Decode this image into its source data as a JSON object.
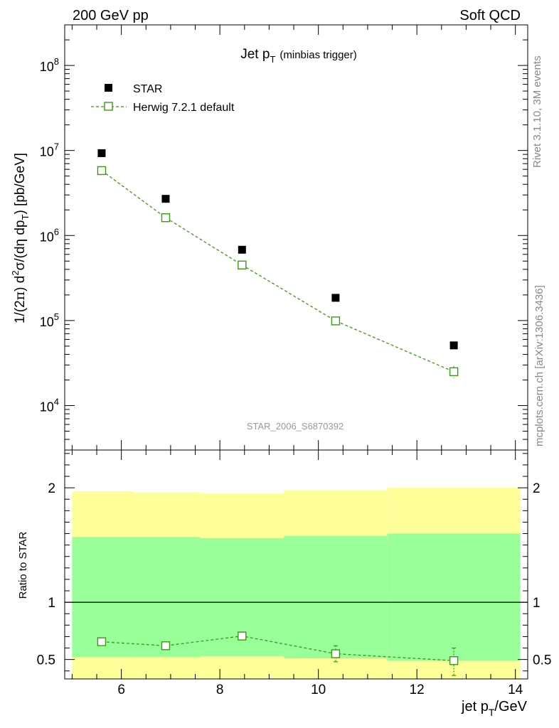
{
  "header": {
    "left": "200 GeV pp",
    "right": "Soft QCD"
  },
  "side": {
    "rivet": "Rivet 3.1.10,  3M events",
    "mcplots": "mcplots.cern.ch [arXiv:1306.3436]"
  },
  "colors": {
    "data": "#000000",
    "mc": "#3a9a12",
    "band_inner": "#99ff99",
    "band_outer": "#ffff99"
  },
  "chart_data": [
    {
      "type": "scatter",
      "title_main": "Jet p",
      "title_sub": "T",
      "title_note": "(minbias trigger)",
      "ylabel_parts": [
        "1/(2",
        "π",
        ") d",
        "2",
        "σ/(dη dp",
        "T",
        ") [pb/GeV]"
      ],
      "yscale": "log",
      "ylim": [
        3000,
        300000000
      ],
      "xlim": [
        4.85,
        14.25
      ],
      "y_ticks": [
        {
          "value": 10000,
          "base": "10",
          "exp": "4"
        },
        {
          "value": 100000,
          "base": "10",
          "exp": "5"
        },
        {
          "value": 1000000,
          "base": "10",
          "exp": "6"
        },
        {
          "value": 10000000,
          "base": "10",
          "exp": "7"
        },
        {
          "value": 100000000,
          "base": "10",
          "exp": "8"
        }
      ],
      "watermark": "STAR_2006_S6870392",
      "legend": [
        {
          "name": "STAR",
          "marker": "filled-square"
        },
        {
          "name": "Herwig 7.2.1 default",
          "marker": "open-square-dashed"
        }
      ],
      "series": [
        {
          "name": "STAR",
          "x": [
            5.6,
            6.9,
            8.45,
            10.35,
            12.75
          ],
          "y": [
            9300000,
            2700000,
            680000,
            185000,
            51000
          ]
        },
        {
          "name": "Herwig 7.2.1 default",
          "x": [
            5.6,
            6.9,
            8.45,
            10.35,
            12.75
          ],
          "y": [
            5800000,
            1620000,
            450000,
            99000,
            25000
          ],
          "yerr_low": [
            100000,
            30000,
            10000,
            3000,
            4000
          ],
          "yerr_high": [
            100000,
            30000,
            10000,
            3000,
            4000
          ]
        }
      ]
    },
    {
      "type": "line",
      "ylabel": "Ratio to STAR",
      "ylim": [
        0.33,
        2.33
      ],
      "xlim": [
        4.85,
        14.25
      ],
      "x_ticks": [
        6,
        8,
        10,
        12,
        14
      ],
      "y_ticks": [
        0.5,
        1,
        2
      ],
      "y_tick_labels": [
        "0.5",
        "1",
        "2"
      ],
      "xlabel_parts": [
        "jet p",
        "T",
        "/GeV"
      ],
      "reference_line": 1,
      "bands": [
        {
          "x_low": 5.0,
          "x_high": 6.25,
          "inner": [
            0.52,
            1.57
          ],
          "outer": [
            0.33,
            1.97
          ]
        },
        {
          "x_low": 6.25,
          "x_high": 7.6,
          "inner": [
            0.52,
            1.57
          ],
          "outer": [
            0.33,
            1.96
          ]
        },
        {
          "x_low": 7.6,
          "x_high": 9.3,
          "inner": [
            0.53,
            1.56
          ],
          "outer": [
            0.33,
            1.95
          ]
        },
        {
          "x_low": 9.3,
          "x_high": 11.4,
          "inner": [
            0.51,
            1.58
          ],
          "outer": [
            0.33,
            1.98
          ]
        },
        {
          "x_low": 11.4,
          "x_high": 14.1,
          "inner": [
            0.49,
            1.6
          ],
          "outer": [
            0.33,
            2.0
          ]
        }
      ],
      "series": [
        {
          "name": "Herwig 7.2.1 default / STAR",
          "x": [
            5.6,
            6.9,
            8.45,
            10.35,
            12.75
          ],
          "y": [
            0.655,
            0.62,
            0.705,
            0.55,
            0.49
          ],
          "yerr_low": [
            0.012,
            0.012,
            0.035,
            0.07,
            0.13
          ],
          "yerr_high": [
            0.012,
            0.012,
            0.035,
            0.07,
            0.11
          ]
        }
      ]
    }
  ]
}
